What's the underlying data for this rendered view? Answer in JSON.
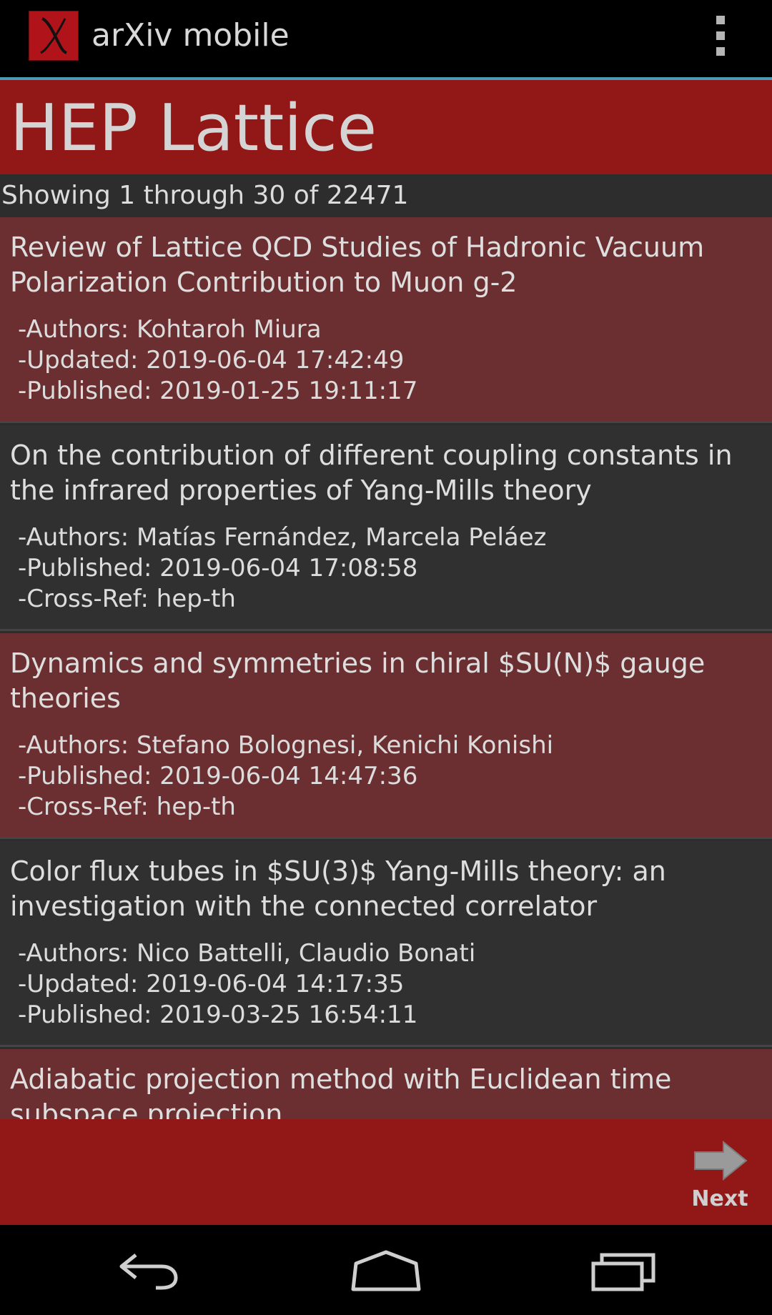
{
  "app": {
    "title": "arXiv mobile",
    "logo_letter": "X",
    "brand_color": "#921717",
    "accent_color": "#4a9ab9"
  },
  "menu": {
    "overflow_icon": "overflow-menu-icon"
  },
  "category": {
    "title": "HEP Lattice"
  },
  "results": {
    "count_text": "Showing 1 through 30 of 22471"
  },
  "articles": [
    {
      "title": "Review of Lattice QCD Studies of Hadronic Vacuum Polarization Contribution to Muon g-2",
      "lines": [
        "-Authors: Kohtaroh Miura",
        "-Updated: 2019-06-04 17:42:49",
        "-Published: 2019-01-25 19:11:17"
      ]
    },
    {
      "title": "On the contribution of different coupling constants in the infrared properties of Yang-Mills theory",
      "lines": [
        "-Authors: Matías Fernández, Marcela Peláez",
        "-Published: 2019-06-04 17:08:58",
        "-Cross-Ref: hep-th"
      ]
    },
    {
      "title": "Dynamics and symmetries in chiral $SU(N)$ gauge theories",
      "lines": [
        "-Authors: Stefano Bolognesi, Kenichi Konishi",
        "-Published: 2019-06-04 14:47:36",
        "-Cross-Ref: hep-th"
      ]
    },
    {
      "title": "Color flux tubes in $SU(3)$ Yang-Mills theory: an investigation with the connected correlator",
      "lines": [
        "-Authors: Nico Battelli, Claudio Bonati",
        "-Updated: 2019-06-04 14:17:35",
        "-Published: 2019-03-25 16:54:11"
      ]
    },
    {
      "title": "Adiabatic projection method with Euclidean time subspace projection",
      "lines": []
    }
  ],
  "pager": {
    "next_label": "Next",
    "next_icon": "arrow-right-icon"
  },
  "system_nav": {
    "back_icon": "back-icon",
    "home_icon": "home-icon",
    "recents_icon": "recents-icon"
  }
}
